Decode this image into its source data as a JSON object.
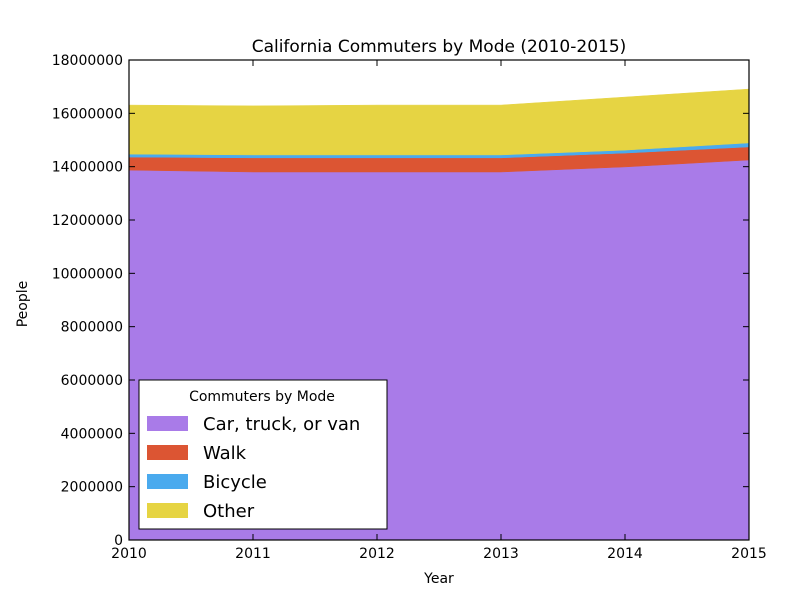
{
  "chart_data": {
    "type": "area",
    "stacked": true,
    "title": "California Commuters by Mode (2010-2015)",
    "xlabel": "Year",
    "ylabel": "People",
    "x": [
      2010,
      2011,
      2012,
      2013,
      2014,
      2015
    ],
    "xlim": [
      2010,
      2015
    ],
    "ylim": [
      0,
      18000000
    ],
    "xticks": [
      "2010",
      "2011",
      "2012",
      "2013",
      "2014",
      "2015"
    ],
    "yticks": [
      "0",
      "2000000",
      "4000000",
      "6000000",
      "8000000",
      "10000000",
      "12000000",
      "14000000",
      "16000000",
      "18000000"
    ],
    "grid": false,
    "legend": {
      "title": "Commuters by Mode",
      "placement": "lower-left"
    },
    "series": [
      {
        "name": "Car, truck, or van",
        "color": "#a97be8",
        "values": [
          13870000,
          13800000,
          13800000,
          13800000,
          13990000,
          14250000
        ]
      },
      {
        "name": "Walk",
        "color": "#dc5533",
        "values": [
          490000,
          530000,
          530000,
          530000,
          520000,
          490000
        ]
      },
      {
        "name": "Bicycle",
        "color": "#4aaaee",
        "values": [
          110000,
          110000,
          110000,
          110000,
          110000,
          150000
        ]
      },
      {
        "name": "Other",
        "color": "#e6d443",
        "values": [
          1840000,
          1840000,
          1870000,
          1870000,
          1990000,
          2020000
        ]
      }
    ]
  }
}
